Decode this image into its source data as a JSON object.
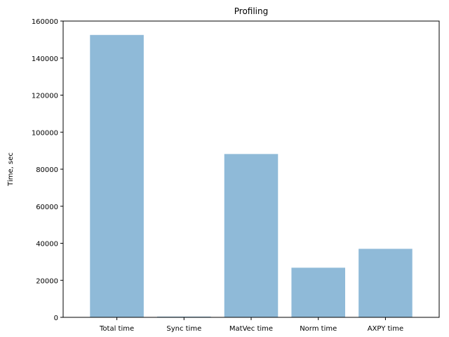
{
  "chart_data": {
    "type": "bar",
    "title": "Profiling",
    "xlabel": "",
    "ylabel": "Time, sec",
    "categories": [
      "Total time",
      "Sync time",
      "MatVec time",
      "Norm time",
      "AXPY time"
    ],
    "values": [
      152500,
      400,
      88200,
      26800,
      37000
    ],
    "ylim": [
      0,
      160000
    ],
    "yticks": [
      0,
      20000,
      40000,
      60000,
      80000,
      100000,
      120000,
      140000,
      160000
    ],
    "ytick_labels": [
      "0",
      "20000",
      "40000",
      "60000",
      "80000",
      "100000",
      "120000",
      "140000",
      "160000"
    ],
    "bar_color": "#8fbad8",
    "grid": false,
    "legend": "none"
  }
}
